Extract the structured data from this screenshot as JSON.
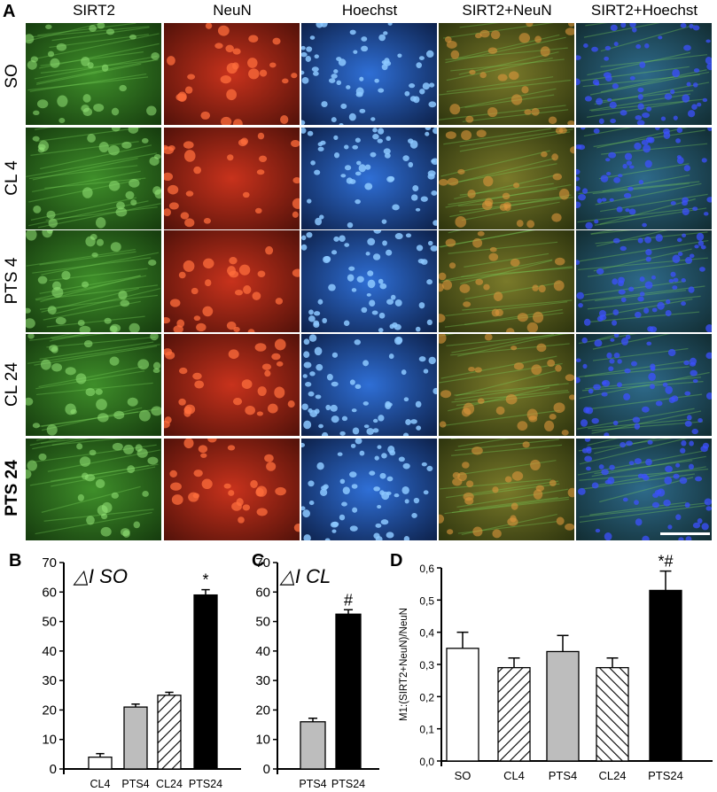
{
  "panel_letters": {
    "a": "A",
    "b": "B",
    "c": "C",
    "d": "D"
  },
  "micrograph": {
    "columns": [
      "SIRT2",
      "NeuN",
      "Hoechst",
      "SIRT2+NeuN",
      "SIRT2+Hoechst"
    ],
    "rows": [
      "SO",
      "CL 4",
      "PTS 4",
      "CL 24",
      "PTS 24"
    ],
    "stain_colors": {
      "SIRT2": "#3f8f2a",
      "NeuN": "#c8321c",
      "Hoechst": "#2f6fd6",
      "SIRT2+NeuN": "#7a7a2a",
      "SIRT2+Hoechst": "#2e6a8a"
    }
  },
  "chart_data": [
    {
      "panel": "B",
      "type": "bar",
      "title": "△I SO",
      "categories": [
        "CL4",
        "PTS4",
        "CL24",
        "PTS24"
      ],
      "values": [
        4,
        21,
        25,
        59
      ],
      "errors": [
        1.2,
        1.0,
        1.0,
        1.8
      ],
      "fills": [
        "white",
        "gray",
        "hatch",
        "black"
      ],
      "annotations": [
        "",
        "",
        "",
        "*"
      ],
      "ylim": [
        0,
        70
      ],
      "yticks": [
        "0",
        "10",
        "20",
        "30",
        "40",
        "50",
        "60",
        "70"
      ]
    },
    {
      "panel": "C",
      "type": "bar",
      "title": "△I CL",
      "categories": [
        "PTS4",
        "PTS24"
      ],
      "values": [
        16,
        52.5
      ],
      "errors": [
        1.2,
        1.5
      ],
      "fills": [
        "gray",
        "black"
      ],
      "annotations": [
        "",
        "#"
      ],
      "ylim": [
        0,
        70
      ],
      "yticks": [
        "0",
        "10",
        "20",
        "30",
        "40",
        "50",
        "60",
        "70"
      ]
    },
    {
      "panel": "D",
      "type": "bar",
      "ylabel": "M1:(SIRT2+NeuN)/NeuN",
      "categories": [
        "SO",
        "CL4",
        "PTS4",
        "CL24",
        "PTS24"
      ],
      "values": [
        0.35,
        0.29,
        0.34,
        0.29,
        0.53
      ],
      "errors": [
        0.05,
        0.03,
        0.05,
        0.03,
        0.06
      ],
      "fills": [
        "white",
        "hatch",
        "gray",
        "hatch-rev",
        "black"
      ],
      "annotations": [
        "",
        "",
        "",
        "",
        "*#"
      ],
      "ylim": [
        0,
        0.6
      ],
      "yticks": [
        "0,0",
        "0,1",
        "0,2",
        "0,3",
        "0,4",
        "0,5",
        "0,6"
      ]
    }
  ]
}
